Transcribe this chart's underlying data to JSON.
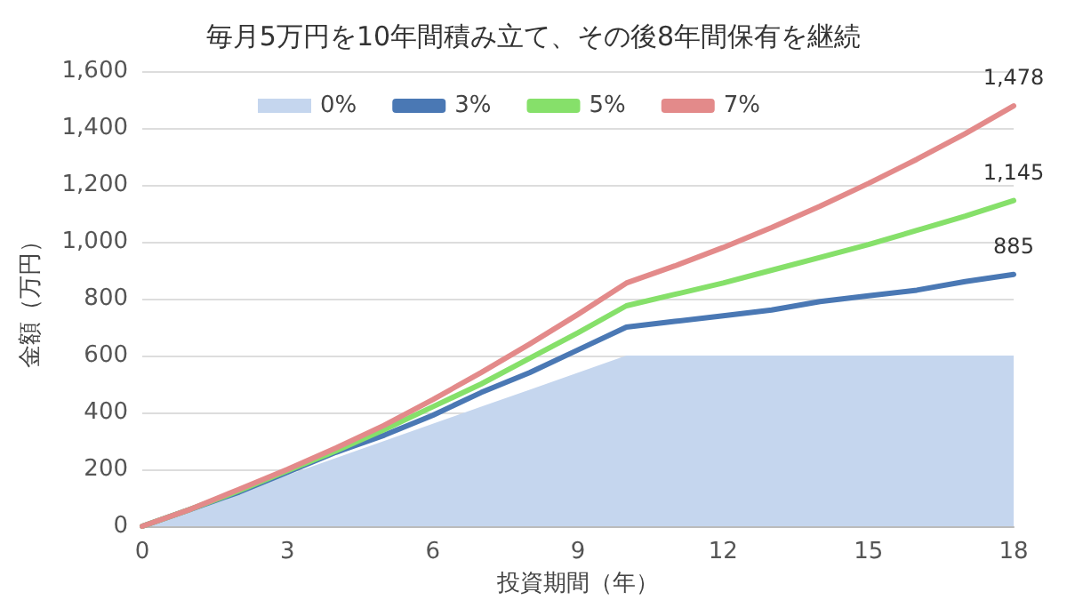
{
  "chart_data": {
    "type": "line",
    "title": "毎月5万円を10年間積み立て、その後8年間保有を継続",
    "xlabel": "投資期間（年）",
    "ylabel": "金額（万円）",
    "x": [
      0,
      1,
      2,
      3,
      4,
      5,
      6,
      7,
      8,
      9,
      10,
      11,
      12,
      13,
      14,
      15,
      16,
      17,
      18
    ],
    "series": [
      {
        "name": "0%",
        "type": "area",
        "color": "#c5d6ee",
        "values": [
          0,
          60,
          120,
          180,
          240,
          300,
          360,
          420,
          480,
          540,
          600,
          600,
          600,
          600,
          600,
          600,
          600,
          600,
          600
        ]
      },
      {
        "name": "3%",
        "color": "#4a78b4",
        "values": [
          0,
          60,
          120,
          190,
          260,
          320,
          390,
          470,
          540,
          620,
          700,
          720,
          740,
          760,
          790,
          810,
          830,
          860,
          885
        ],
        "value_labels": [
          null,
          null,
          null,
          null,
          null,
          null,
          null,
          null,
          null,
          null,
          null,
          null,
          null,
          null,
          null,
          null,
          null,
          null,
          "885"
        ]
      },
      {
        "name": "5%",
        "color": "#86e06a",
        "values": [
          0,
          60,
          125,
          195,
          265,
          340,
          420,
          500,
          590,
          680,
          775,
          815,
          855,
          900,
          945,
          990,
          1040,
          1090,
          1145
        ],
        "value_labels": [
          null,
          null,
          null,
          null,
          null,
          null,
          null,
          null,
          null,
          null,
          null,
          null,
          null,
          null,
          null,
          null,
          null,
          null,
          "1,145"
        ]
      },
      {
        "name": "7%",
        "color": "#e38a8a",
        "values": [
          0,
          60,
          130,
          200,
          275,
          355,
          445,
          540,
          640,
          745,
          855,
          915,
          980,
          1050,
          1125,
          1205,
          1290,
          1380,
          1478
        ],
        "value_labels": [
          null,
          null,
          null,
          null,
          null,
          null,
          null,
          null,
          null,
          null,
          null,
          null,
          null,
          null,
          null,
          null,
          null,
          null,
          "1,478"
        ]
      }
    ],
    "xlim": [
      0,
      18
    ],
    "xticks": [
      0,
      3,
      6,
      9,
      12,
      15,
      18
    ],
    "ylim": [
      0,
      1600
    ],
    "yticks": [
      0,
      200,
      400,
      600,
      800,
      {
        "value": 1000,
        "label": "1,000"
      },
      {
        "value": 1200,
        "label": "1,200"
      },
      {
        "value": 1400,
        "label": "1,400"
      },
      {
        "value": 1600,
        "label": "1,600"
      }
    ],
    "grid": "y",
    "legend": "top",
    "marker": "none",
    "line_style": "solid"
  }
}
